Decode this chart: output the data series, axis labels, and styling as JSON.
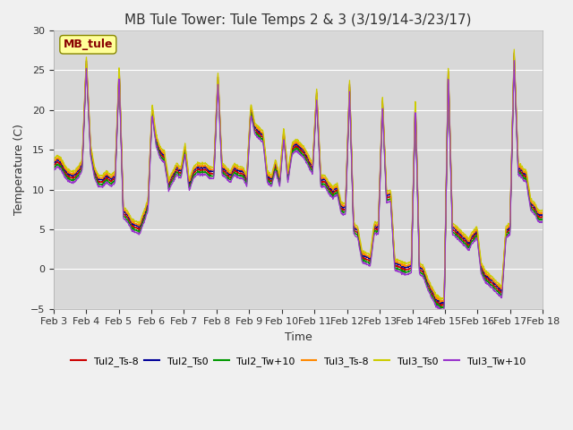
{
  "title": "MB Tule Tower: Tule Temps 2 & 3 (3/19/14-3/23/17)",
  "xlabel": "Time",
  "ylabel": "Temperature (C)",
  "ylim": [
    -5,
    30
  ],
  "yticks": [
    -5,
    0,
    5,
    10,
    15,
    20,
    25,
    30
  ],
  "xlim": [
    0,
    15
  ],
  "xtick_labels": [
    "Feb 3",
    "Feb 4",
    "Feb 5",
    "Feb 6",
    "Feb 7",
    "Feb 8",
    "Feb 9",
    "Feb 10",
    "Feb 11",
    "Feb 12",
    "Feb 13",
    "Feb 14",
    "Feb 15",
    "Feb 16",
    "Feb 17",
    "Feb 18"
  ],
  "series_colors": {
    "Tul2_Ts-8": "#cc0000",
    "Tul2_Ts0": "#000099",
    "Tul2_Tw+10": "#009900",
    "Tul3_Ts-8": "#ff8800",
    "Tul3_Ts0": "#cccc00",
    "Tul3_Tw+10": "#9933cc"
  },
  "legend_box_color": "#ffff99",
  "legend_box_label": "MB_tule",
  "legend_box_text_color": "#880000",
  "plot_bg_inner": "#d8d8d8",
  "plot_bg_outer": "#f0f0f0",
  "grid_color": "#ffffff",
  "title_fontsize": 11,
  "axis_label_fontsize": 9,
  "tick_fontsize": 8,
  "base_curve": [
    13.0,
    13.5,
    13.0,
    12.0,
    11.5,
    11.5,
    12.0,
    13.0,
    26.0,
    15.0,
    12.0,
    11.0,
    11.0,
    11.5,
    11.0,
    11.5,
    25.0,
    7.0,
    6.5,
    5.5,
    5.2,
    5.0,
    6.5,
    8.0,
    20.0,
    16.0,
    14.5,
    14.0,
    10.5,
    11.5,
    12.5,
    12.0,
    15.0,
    10.5,
    12.0,
    12.5,
    12.5,
    12.5,
    12.0,
    12.0,
    24.0,
    12.5,
    12.0,
    11.5,
    12.5,
    12.0,
    12.0,
    11.0,
    20.0,
    17.5,
    17.0,
    16.5,
    11.5,
    11.0,
    13.0,
    11.0,
    17.0,
    11.5,
    15.0,
    15.5,
    15.0,
    14.5,
    13.5,
    12.5,
    22.0,
    11.0,
    11.0,
    10.0,
    9.5,
    10.0,
    7.5,
    7.5,
    23.0,
    5.0,
    4.5,
    1.5,
    1.2,
    1.0,
    5.0,
    5.0,
    21.0,
    9.0,
    9.0,
    0.5,
    0.3,
    0.0,
    0.0,
    0.0,
    21.0,
    0.0,
    -0.5,
    -2.0,
    -3.0,
    -4.0,
    -4.5,
    -4.5,
    25.0,
    5.0,
    4.5,
    4.0,
    3.5,
    3.0,
    4.0,
    4.5,
    0.0,
    -1.0,
    -1.5,
    -2.0,
    -2.5,
    -3.0,
    4.5,
    5.0,
    27.0,
    12.5,
    12.0,
    11.5,
    8.0,
    7.5,
    6.5,
    6.5
  ],
  "offsets": {
    "Tul2_Ts-8": 0.0,
    "Tul2_Ts0": 0.3,
    "Tul2_Tw+10": -0.3,
    "Tul3_Ts-8": 0.5,
    "Tul3_Ts0": 0.8,
    "Tul3_Tw+10": -0.6
  }
}
